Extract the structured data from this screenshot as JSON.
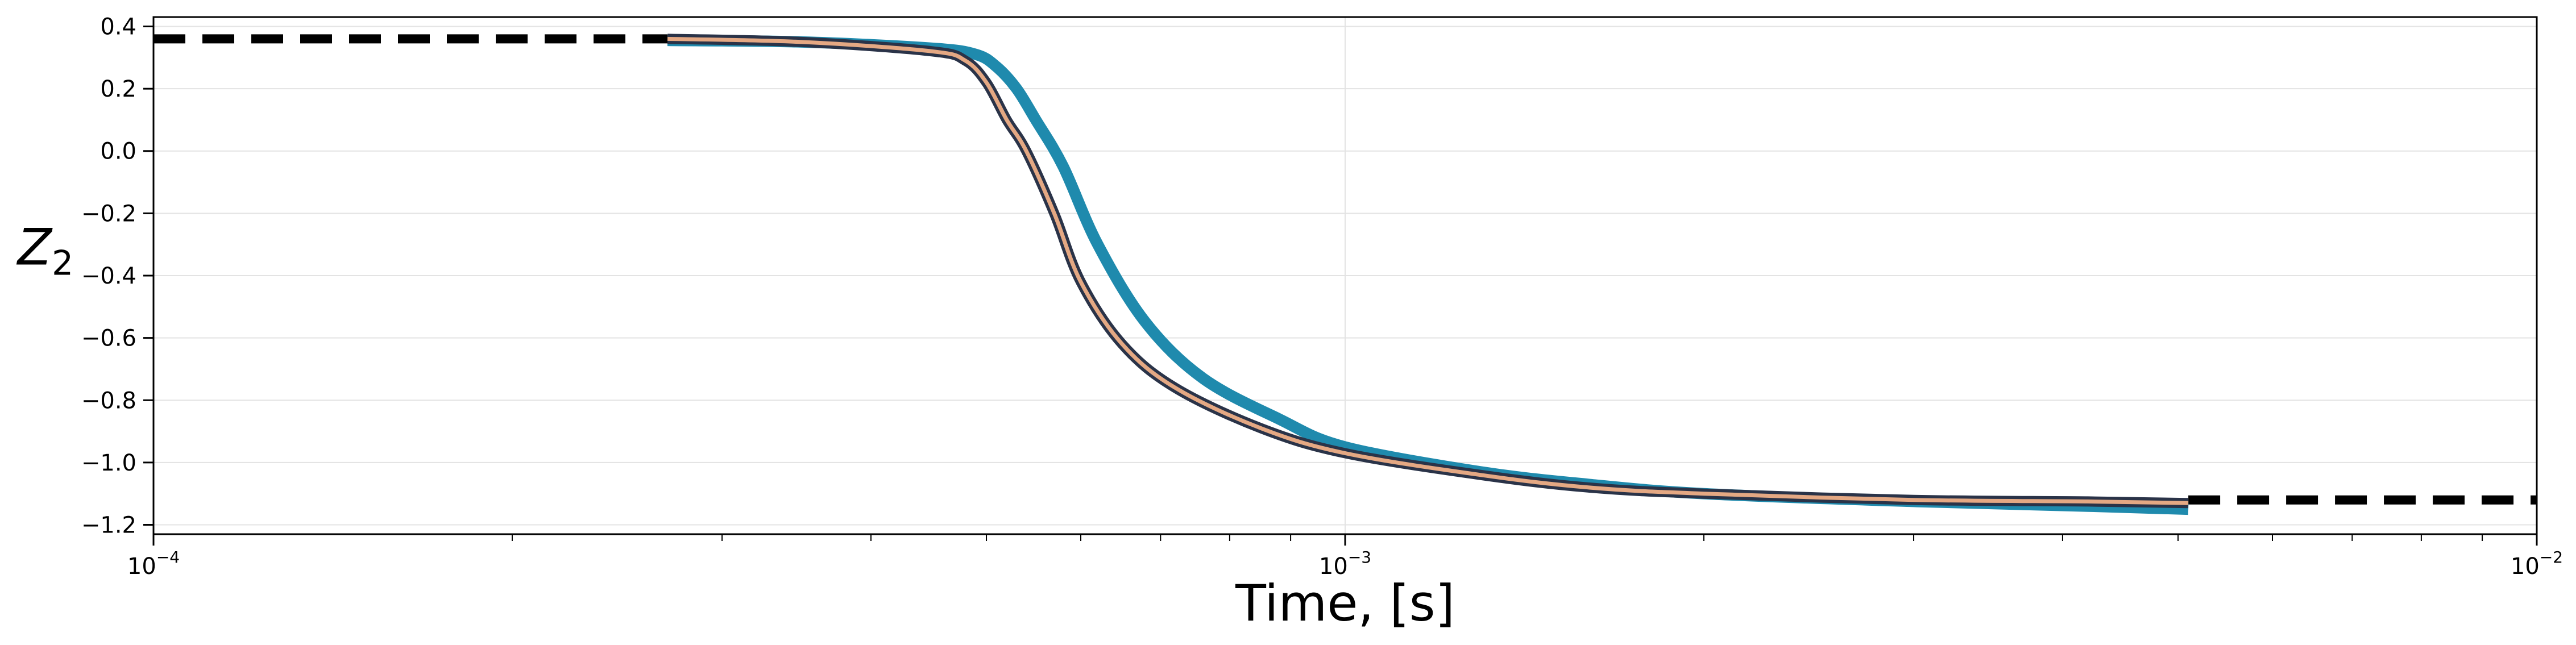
{
  "chart_data": {
    "type": "line",
    "title": "",
    "xlabel": "Time, [s]",
    "ylabel": "Z",
    "ylabel_subscript": "2",
    "xscale": "log",
    "xlim": [
      0.0001,
      0.01
    ],
    "ylim": [
      -1.23,
      0.43
    ],
    "grid": true,
    "legend": "none",
    "x_ticks": [
      {
        "value": 0.0001,
        "base": "10",
        "exp": "−4"
      },
      {
        "value": 0.001,
        "base": "10",
        "exp": "−3"
      },
      {
        "value": 0.01,
        "base": "10",
        "exp": "−2"
      }
    ],
    "y_ticks": [
      {
        "value": 0.4,
        "label": "0.4"
      },
      {
        "value": 0.2,
        "label": "0.2"
      },
      {
        "value": 0.0,
        "label": "0.0"
      },
      {
        "value": -0.2,
        "label": "−0.2"
      },
      {
        "value": -0.4,
        "label": "−0.4"
      },
      {
        "value": -0.6,
        "label": "−0.6"
      },
      {
        "value": -0.8,
        "label": "−0.8"
      },
      {
        "value": -1.0,
        "label": "−1.0"
      },
      {
        "value": -1.2,
        "label": "−1.2"
      }
    ],
    "series": [
      {
        "style": "dashed",
        "color": "#000000",
        "width": 16,
        "x": [
          0.0001,
          0.00027
        ],
        "y": [
          0.36,
          0.36
        ]
      },
      {
        "style": "dashed",
        "color": "#000000",
        "width": 16,
        "x": [
          0.0051,
          0.01
        ],
        "y": [
          -1.12,
          -1.12
        ]
      },
      {
        "style": "solid",
        "color": "#1f8aad",
        "width": 20,
        "x": [
          0.00027,
          0.00035,
          0.00045,
          0.00049,
          0.00051,
          0.00053,
          0.00055,
          0.00058,
          0.00062,
          0.00068,
          0.00076,
          0.00088,
          0.001,
          0.0013,
          0.0016,
          0.002,
          0.003,
          0.0042,
          0.0051
        ],
        "y": [
          0.355,
          0.35,
          0.33,
          0.31,
          0.27,
          0.2,
          0.1,
          -0.05,
          -0.3,
          -0.55,
          -0.73,
          -0.86,
          -0.95,
          -1.03,
          -1.07,
          -1.1,
          -1.125,
          -1.14,
          -1.15
        ]
      },
      {
        "style": "solid",
        "color": "#2a3348",
        "width": 18,
        "x": [
          0.00027,
          0.00035,
          0.00045,
          0.00048,
          0.0005,
          0.00052,
          0.00054,
          0.00057,
          0.0006,
          0.00065,
          0.00072,
          0.00085,
          0.001,
          0.0013,
          0.0016,
          0.002,
          0.003,
          0.0042,
          0.0051
        ],
        "y": [
          0.36,
          0.35,
          0.32,
          0.29,
          0.22,
          0.1,
          0.0,
          -0.2,
          -0.42,
          -0.62,
          -0.76,
          -0.89,
          -0.97,
          -1.04,
          -1.08,
          -1.1,
          -1.12,
          -1.125,
          -1.13
        ]
      },
      {
        "style": "solid",
        "color": "#e4a883",
        "width": 7,
        "x": [
          0.00027,
          0.00035,
          0.00045,
          0.00048,
          0.0005,
          0.00052,
          0.00054,
          0.00057,
          0.0006,
          0.00065,
          0.00072,
          0.00085,
          0.001,
          0.0013,
          0.0016,
          0.002,
          0.003,
          0.0042,
          0.0051
        ],
        "y": [
          0.36,
          0.35,
          0.32,
          0.29,
          0.22,
          0.1,
          0.0,
          -0.2,
          -0.42,
          -0.62,
          -0.76,
          -0.89,
          -0.97,
          -1.04,
          -1.08,
          -1.1,
          -1.12,
          -1.125,
          -1.13
        ]
      }
    ]
  }
}
